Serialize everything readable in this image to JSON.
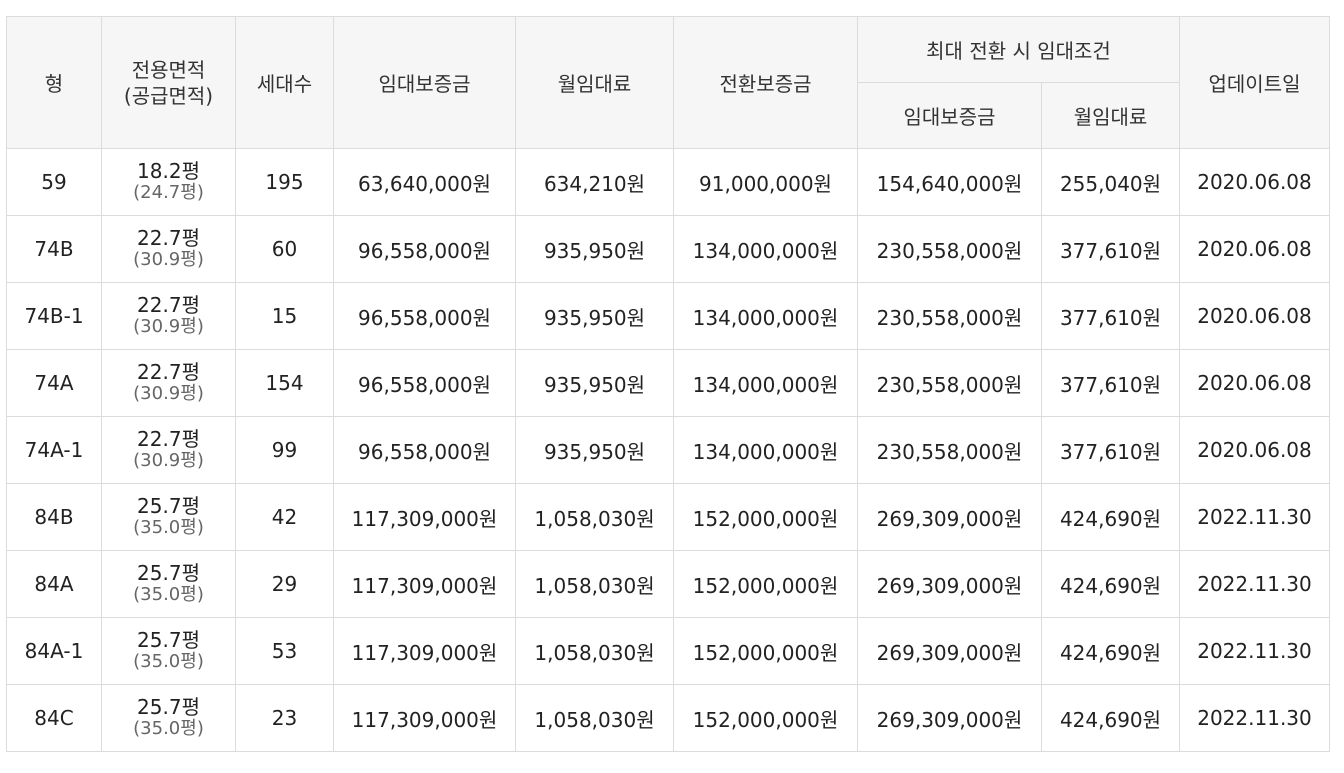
{
  "headers": {
    "type": "형",
    "area_line1": "전용면적",
    "area_line2": "(공급면적)",
    "households": "세대수",
    "deposit": "임대보증금",
    "monthly_rent": "월임대료",
    "conversion_deposit": "전환보증금",
    "max_conversion_group": "최대 전환 시 임대조건",
    "max_deposit": "임대보증금",
    "max_monthly_rent": "월임대료",
    "updated": "업데이트일"
  },
  "rows": [
    {
      "type": "59",
      "area": "18.2평",
      "supply_area": "(24.7평)",
      "households": "195",
      "deposit": "63,640,000원",
      "monthly_rent": "634,210원",
      "conversion_deposit": "91,000,000원",
      "max_deposit": "154,640,000원",
      "max_monthly_rent": "255,040원",
      "updated": "2020.06.08"
    },
    {
      "type": "74B",
      "area": "22.7평",
      "supply_area": "(30.9평)",
      "households": "60",
      "deposit": "96,558,000원",
      "monthly_rent": "935,950원",
      "conversion_deposit": "134,000,000원",
      "max_deposit": "230,558,000원",
      "max_monthly_rent": "377,610원",
      "updated": "2020.06.08"
    },
    {
      "type": "74B-1",
      "area": "22.7평",
      "supply_area": "(30.9평)",
      "households": "15",
      "deposit": "96,558,000원",
      "monthly_rent": "935,950원",
      "conversion_deposit": "134,000,000원",
      "max_deposit": "230,558,000원",
      "max_monthly_rent": "377,610원",
      "updated": "2020.06.08"
    },
    {
      "type": "74A",
      "area": "22.7평",
      "supply_area": "(30.9평)",
      "households": "154",
      "deposit": "96,558,000원",
      "monthly_rent": "935,950원",
      "conversion_deposit": "134,000,000원",
      "max_deposit": "230,558,000원",
      "max_monthly_rent": "377,610원",
      "updated": "2020.06.08"
    },
    {
      "type": "74A-1",
      "area": "22.7평",
      "supply_area": "(30.9평)",
      "households": "99",
      "deposit": "96,558,000원",
      "monthly_rent": "935,950원",
      "conversion_deposit": "134,000,000원",
      "max_deposit": "230,558,000원",
      "max_monthly_rent": "377,610원",
      "updated": "2020.06.08"
    },
    {
      "type": "84B",
      "area": "25.7평",
      "supply_area": "(35.0평)",
      "households": "42",
      "deposit": "117,309,000원",
      "monthly_rent": "1,058,030원",
      "conversion_deposit": "152,000,000원",
      "max_deposit": "269,309,000원",
      "max_monthly_rent": "424,690원",
      "updated": "2022.11.30"
    },
    {
      "type": "84A",
      "area": "25.7평",
      "supply_area": "(35.0평)",
      "households": "29",
      "deposit": "117,309,000원",
      "monthly_rent": "1,058,030원",
      "conversion_deposit": "152,000,000원",
      "max_deposit": "269,309,000원",
      "max_monthly_rent": "424,690원",
      "updated": "2022.11.30"
    },
    {
      "type": "84A-1",
      "area": "25.7평",
      "supply_area": "(35.0평)",
      "households": "53",
      "deposit": "117,309,000원",
      "monthly_rent": "1,058,030원",
      "conversion_deposit": "152,000,000원",
      "max_deposit": "269,309,000원",
      "max_monthly_rent": "424,690원",
      "updated": "2022.11.30"
    },
    {
      "type": "84C",
      "area": "25.7평",
      "supply_area": "(35.0평)",
      "households": "23",
      "deposit": "117,309,000원",
      "monthly_rent": "1,058,030원",
      "conversion_deposit": "152,000,000원",
      "max_deposit": "269,309,000원",
      "max_monthly_rent": "424,690원",
      "updated": "2022.11.30"
    }
  ]
}
